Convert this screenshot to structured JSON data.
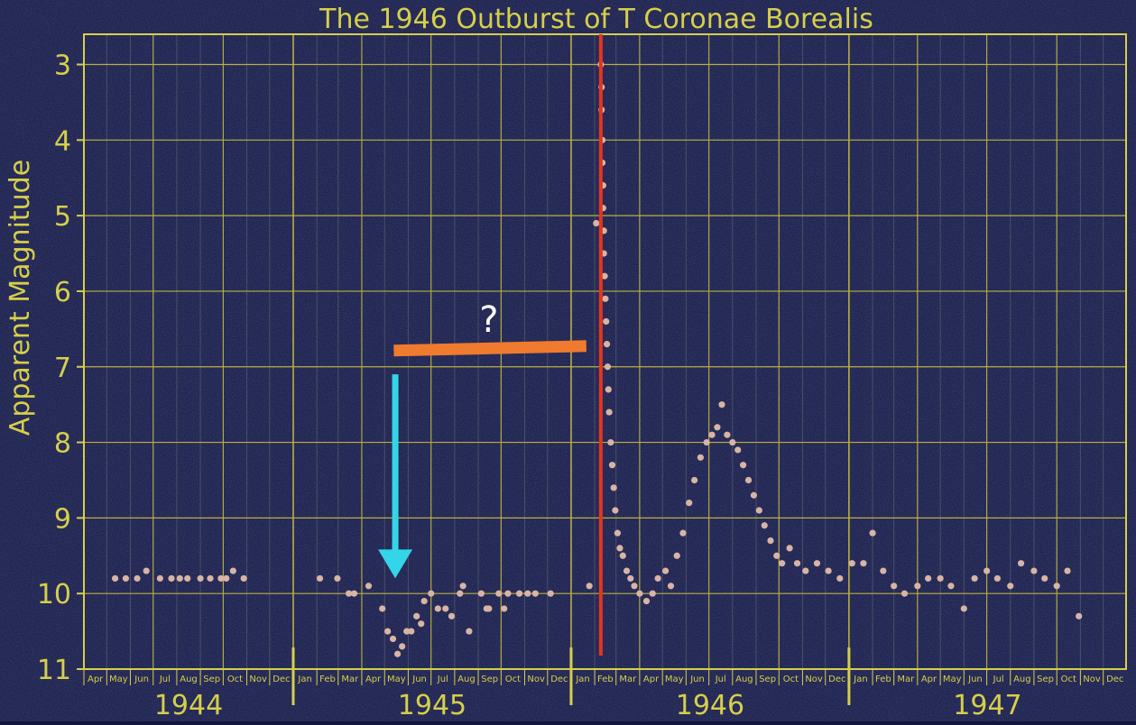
{
  "colors": {
    "background": "#12163f",
    "axis": "#d6cf4a",
    "grid_major": "#b8b040",
    "grid_minor": "#4a4f6a",
    "points": "#d8b4a4",
    "outburst_line": "#e8341c",
    "arrow": "#33d6e8",
    "bar": "#f07a2e",
    "question_text": "#ffffff"
  },
  "annotations": {
    "question": "?",
    "outburst_date": "1946-02-09",
    "arrow_date": "1945-05-15",
    "arrow_from_mag": 7.1,
    "arrow_to_mag": 9.8,
    "bar_start": "1945-05-13",
    "bar_end": "1946-01-21",
    "bar_mag": 6.75
  },
  "chart_data": {
    "type": "scatter",
    "title": "The 1946 Outburst of T Coronae Borealis",
    "xlabel": "",
    "ylabel": "Apparent Magnitude",
    "xlim": [
      "1944-04-01",
      "1947-12-31"
    ],
    "ylim": [
      2.6,
      11.0
    ],
    "y_inverted": true,
    "yticks": [
      3,
      4,
      5,
      6,
      7,
      8,
      9,
      10,
      11
    ],
    "year_labels": [
      "1944",
      "1945",
      "1946",
      "1947"
    ],
    "month_labels": [
      "Jan",
      "Feb",
      "Mar",
      "Apr",
      "May",
      "Jun",
      "Jul",
      "Aug",
      "Sep",
      "Oct",
      "Nov",
      "Dec"
    ],
    "grid": true,
    "series": [
      {
        "values": [
          [
            "1944-05-12",
            9.8
          ],
          [
            "1944-05-26",
            9.8
          ],
          [
            "1944-06-10",
            9.8
          ],
          [
            "1944-06-22",
            9.7
          ],
          [
            "1944-07-10",
            9.8
          ],
          [
            "1944-07-25",
            9.8
          ],
          [
            "1944-08-05",
            9.8
          ],
          [
            "1944-08-15",
            9.8
          ],
          [
            "1944-09-01",
            9.8
          ],
          [
            "1944-09-14",
            9.8
          ],
          [
            "1944-09-28",
            9.8
          ],
          [
            "1944-10-05",
            9.8
          ],
          [
            "1944-10-14",
            9.7
          ],
          [
            "1944-10-28",
            9.8
          ],
          [
            "1945-02-05",
            9.8
          ],
          [
            "1945-02-28",
            9.8
          ],
          [
            "1945-03-15",
            10.0
          ],
          [
            "1945-03-22",
            10.0
          ],
          [
            "1945-04-10",
            9.9
          ],
          [
            "1945-04-28",
            10.2
          ],
          [
            "1945-05-05",
            10.5
          ],
          [
            "1945-05-12",
            10.6
          ],
          [
            "1945-05-18",
            10.8
          ],
          [
            "1945-05-24",
            10.7
          ],
          [
            "1945-05-30",
            10.5
          ],
          [
            "1945-06-05",
            10.5
          ],
          [
            "1945-06-12",
            10.3
          ],
          [
            "1945-06-18",
            10.4
          ],
          [
            "1945-06-22",
            10.1
          ],
          [
            "1945-07-01",
            10.0
          ],
          [
            "1945-07-10",
            10.2
          ],
          [
            "1945-07-20",
            10.2
          ],
          [
            "1945-07-28",
            10.3
          ],
          [
            "1945-08-08",
            10.0
          ],
          [
            "1945-08-12",
            9.9
          ],
          [
            "1945-08-20",
            10.5
          ],
          [
            "1945-09-05",
            10.0
          ],
          [
            "1945-09-12",
            10.2
          ],
          [
            "1945-09-15",
            10.2
          ],
          [
            "1945-09-28",
            10.0
          ],
          [
            "1945-10-05",
            10.2
          ],
          [
            "1945-10-10",
            10.0
          ],
          [
            "1945-10-25",
            10.0
          ],
          [
            "1945-11-05",
            10.0
          ],
          [
            "1945-11-15",
            10.0
          ],
          [
            "1945-12-05",
            10.0
          ],
          [
            "1946-01-25",
            9.9
          ],
          [
            "1946-02-03",
            5.1
          ],
          [
            "1946-02-09",
            3.0
          ],
          [
            "1946-02-10",
            3.3
          ],
          [
            "1946-02-10",
            3.6
          ],
          [
            "1946-02-11",
            4.0
          ],
          [
            "1946-02-11",
            4.3
          ],
          [
            "1946-02-12",
            4.6
          ],
          [
            "1946-02-12",
            4.9
          ],
          [
            "1946-02-13",
            5.2
          ],
          [
            "1946-02-13",
            5.5
          ],
          [
            "1946-02-14",
            5.8
          ],
          [
            "1946-02-15",
            6.1
          ],
          [
            "1946-02-16",
            6.4
          ],
          [
            "1946-02-17",
            6.7
          ],
          [
            "1946-02-18",
            7.0
          ],
          [
            "1946-02-19",
            7.3
          ],
          [
            "1946-02-20",
            7.6
          ],
          [
            "1946-02-22",
            8.0
          ],
          [
            "1946-02-24",
            8.3
          ],
          [
            "1946-02-26",
            8.6
          ],
          [
            "1946-02-28",
            8.9
          ],
          [
            "1946-03-03",
            9.2
          ],
          [
            "1946-03-06",
            9.4
          ],
          [
            "1946-03-10",
            9.5
          ],
          [
            "1946-03-15",
            9.7
          ],
          [
            "1946-03-20",
            9.8
          ],
          [
            "1946-03-25",
            9.9
          ],
          [
            "1946-04-01",
            10.0
          ],
          [
            "1946-04-10",
            10.1
          ],
          [
            "1946-04-18",
            10.0
          ],
          [
            "1946-04-25",
            9.8
          ],
          [
            "1946-05-05",
            9.7
          ],
          [
            "1946-05-12",
            9.9
          ],
          [
            "1946-05-20",
            9.5
          ],
          [
            "1946-05-28",
            9.2
          ],
          [
            "1946-06-05",
            8.8
          ],
          [
            "1946-06-12",
            8.5
          ],
          [
            "1946-06-20",
            8.2
          ],
          [
            "1946-06-28",
            8.0
          ],
          [
            "1946-07-05",
            7.9
          ],
          [
            "1946-07-12",
            7.8
          ],
          [
            "1946-07-18",
            7.5
          ],
          [
            "1946-07-25",
            7.9
          ],
          [
            "1946-08-01",
            8.0
          ],
          [
            "1946-08-08",
            8.1
          ],
          [
            "1946-08-15",
            8.3
          ],
          [
            "1946-08-22",
            8.5
          ],
          [
            "1946-08-29",
            8.7
          ],
          [
            "1946-09-05",
            8.9
          ],
          [
            "1946-09-12",
            9.1
          ],
          [
            "1946-09-20",
            9.3
          ],
          [
            "1946-09-28",
            9.5
          ],
          [
            "1946-10-05",
            9.6
          ],
          [
            "1946-10-15",
            9.4
          ],
          [
            "1946-10-25",
            9.6
          ],
          [
            "1946-11-05",
            9.7
          ],
          [
            "1946-11-20",
            9.6
          ],
          [
            "1946-12-05",
            9.7
          ],
          [
            "1946-12-20",
            9.8
          ],
          [
            "1947-01-05",
            9.6
          ],
          [
            "1947-01-20",
            9.6
          ],
          [
            "1947-02-01",
            9.2
          ],
          [
            "1947-02-15",
            9.7
          ],
          [
            "1947-03-01",
            9.9
          ],
          [
            "1947-03-15",
            10.0
          ],
          [
            "1947-04-01",
            9.9
          ],
          [
            "1947-04-15",
            9.8
          ],
          [
            "1947-05-01",
            9.8
          ],
          [
            "1947-05-15",
            9.9
          ],
          [
            "1947-06-01",
            10.2
          ],
          [
            "1947-06-15",
            9.8
          ],
          [
            "1947-07-01",
            9.7
          ],
          [
            "1947-07-15",
            9.8
          ],
          [
            "1947-08-01",
            9.9
          ],
          [
            "1947-08-15",
            9.6
          ],
          [
            "1947-09-01",
            9.7
          ],
          [
            "1947-09-15",
            9.8
          ],
          [
            "1947-10-01",
            9.9
          ],
          [
            "1947-10-15",
            9.7
          ],
          [
            "1947-10-30",
            10.3
          ]
        ]
      }
    ]
  }
}
